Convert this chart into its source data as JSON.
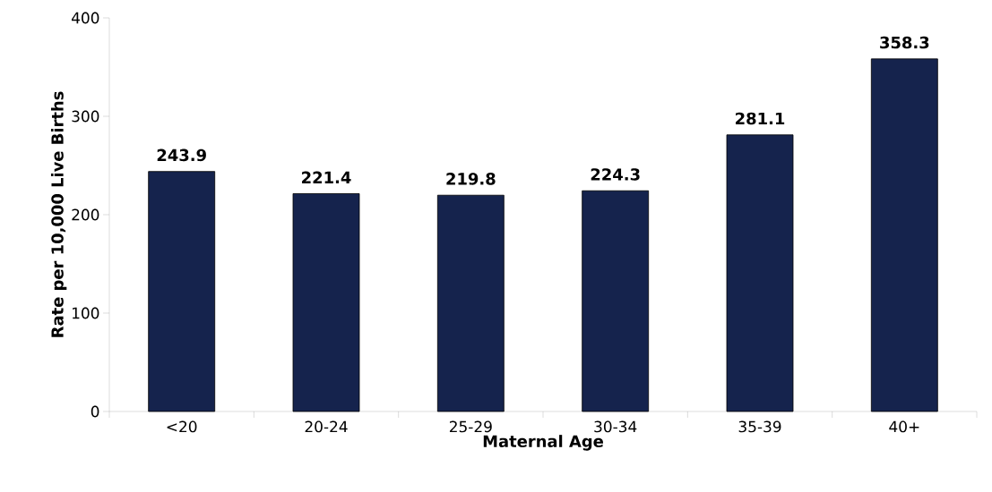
{
  "chart_data": {
    "type": "bar",
    "xlabel": "Maternal Age",
    "ylabel": "Rate per 10,000 Live Births",
    "categories": [
      "<20",
      "20-24",
      "25-29",
      "30-34",
      "35-39",
      "40+"
    ],
    "values": [
      243.9,
      221.4,
      219.8,
      224.3,
      281.1,
      358.3
    ],
    "color": "#15234d",
    "ylim": [
      0,
      400
    ],
    "yticks": [
      0,
      100,
      200,
      300,
      400
    ],
    "data_labels": true
  }
}
